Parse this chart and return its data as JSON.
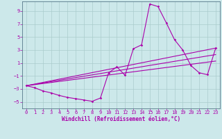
{
  "xlabel": "Windchill (Refroidissement éolien,°C)",
  "bg_color": "#cce8ea",
  "grid_color": "#aacccc",
  "line_color": "#aa00aa",
  "xlim": [
    -0.5,
    23.5
  ],
  "ylim": [
    -6.0,
    10.5
  ],
  "yticks": [
    -5,
    -3,
    -1,
    1,
    3,
    5,
    7,
    9
  ],
  "xticks": [
    0,
    1,
    2,
    3,
    4,
    5,
    6,
    7,
    8,
    9,
    10,
    11,
    12,
    13,
    14,
    15,
    16,
    17,
    18,
    19,
    20,
    21,
    22,
    23
  ],
  "series": [
    [
      0,
      -2.5
    ],
    [
      1,
      -2.8
    ],
    [
      2,
      -3.3
    ],
    [
      3,
      -3.6
    ],
    [
      4,
      -4.0
    ],
    [
      5,
      -4.3
    ],
    [
      6,
      -4.5
    ],
    [
      7,
      -4.7
    ],
    [
      8,
      -4.9
    ],
    [
      9,
      -4.4
    ],
    [
      10,
      -0.5
    ],
    [
      11,
      0.4
    ],
    [
      12,
      -0.9
    ],
    [
      13,
      3.2
    ],
    [
      14,
      3.8
    ],
    [
      15,
      10.1
    ],
    [
      16,
      9.7
    ],
    [
      17,
      7.2
    ],
    [
      18,
      4.6
    ],
    [
      19,
      3.0
    ],
    [
      20,
      0.6
    ],
    [
      21,
      -0.5
    ],
    [
      22,
      -0.8
    ],
    [
      23,
      3.3
    ]
  ],
  "line2": [
    [
      0,
      -2.5
    ],
    [
      23,
      3.3
    ]
  ],
  "line3": [
    [
      0,
      -2.5
    ],
    [
      23,
      2.3
    ]
  ],
  "line4": [
    [
      0,
      -2.5
    ],
    [
      23,
      1.3
    ]
  ]
}
